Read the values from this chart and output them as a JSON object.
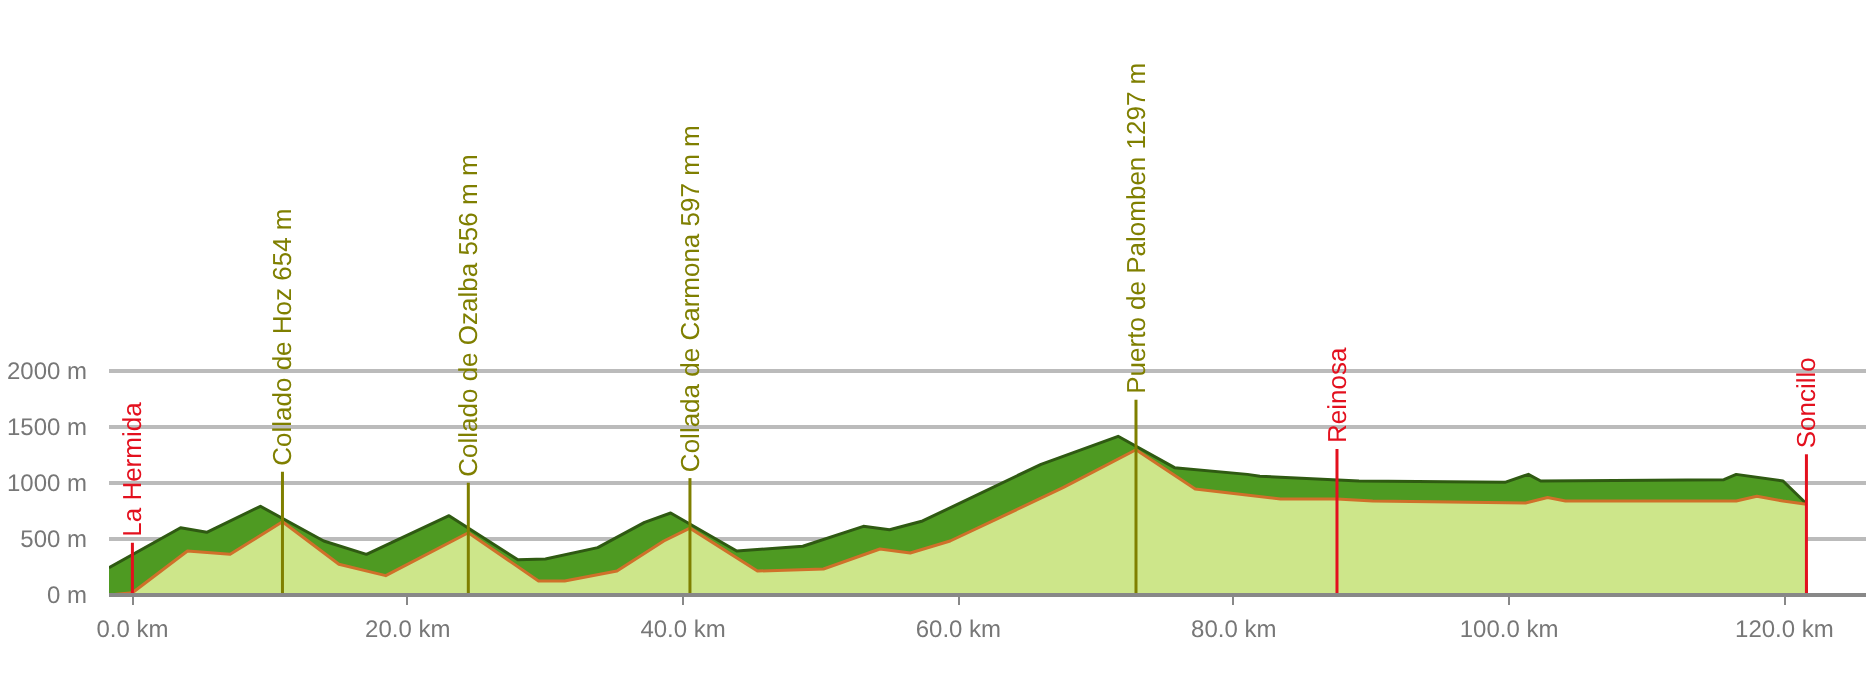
{
  "chart_data": {
    "type": "area",
    "series": [
      {
        "color": "#4e9a22",
        "x": [
          -1.7,
          3.5,
          5.4,
          9.3,
          13.9,
          17.0,
          23.0,
          28.0,
          30.0,
          33.8,
          37.2,
          39.1,
          43.9,
          48.7,
          53.1,
          55.0,
          57.4,
          66.0,
          71.6,
          75.7,
          81.0,
          81.9,
          89.1,
          99.7,
          101.4,
          102.3,
          115.6,
          116.5,
          119.9,
          121.4,
          121.6
        ],
        "values": [
          244,
          601,
          560,
          792,
          482,
          363,
          708,
          315,
          321,
          423,
          649,
          732,
          393,
          435,
          613,
          583,
          661,
          1167,
          1417,
          1137,
          1077,
          1060,
          1018,
          1006,
          1077,
          1018,
          1030,
          1077,
          1018,
          839,
          0
        ]
      },
      {
        "color": "#cde68a",
        "x": [
          -1.7,
          0,
          4.0,
          7.1,
          10.9,
          15.0,
          18.4,
          24.4,
          29.5,
          31.4,
          35.2,
          38.6,
          40.5,
          45.4,
          50.2,
          54.3,
          56.5,
          59.4,
          67.6,
          72.9,
          77.2,
          83.4,
          87.5,
          90.1,
          101.2,
          102.8,
          104.1,
          116.5,
          118.0,
          119.9,
          121.6
        ],
        "values": [
          0,
          20,
          393,
          363,
          654,
          274,
          173,
          556,
          125,
          125,
          214,
          482,
          597,
          214,
          232,
          411,
          375,
          482,
          958,
          1297,
          946,
          857,
          857,
          839,
          821,
          870,
          839,
          839,
          881,
          839,
          810
        ]
      }
    ],
    "xlim": [
      -1.7,
      126
    ],
    "xticks": [
      {
        "value": 0,
        "label": "0.0 km"
      },
      {
        "value": 20,
        "label": "20.0 km"
      },
      {
        "value": 40,
        "label": "40.0 km"
      },
      {
        "value": 60,
        "label": "60.0 km"
      },
      {
        "value": 80,
        "label": "80.0 km"
      },
      {
        "value": 100,
        "label": "100.0 km"
      },
      {
        "value": 120,
        "label": "120.0 km"
      }
    ],
    "ylim": [
      0,
      2000
    ],
    "yticks": [
      {
        "value": 0,
        "label": "0 m"
      },
      {
        "value": 500,
        "label": "500 m"
      },
      {
        "value": 1000,
        "label": "1000 m"
      },
      {
        "value": 1500,
        "label": "1500 m"
      },
      {
        "value": 2000,
        "label": "2000 m"
      }
    ],
    "grid": "y",
    "ref_lines": [
      {
        "axis": "x",
        "value": 0,
        "label": "La Hermida",
        "color": "#e3101e"
      },
      {
        "axis": "x",
        "value": 10.9,
        "label": "Collado de Hoz 654 m",
        "color": "#7f7f00"
      },
      {
        "axis": "x",
        "value": 24.4,
        "label": "Collado de Ozalba 556 m m",
        "color": "#7f7f00"
      },
      {
        "axis": "x",
        "value": 40.5,
        "label": "Collada de Carmona 597 m m",
        "color": "#7f7f00"
      },
      {
        "axis": "x",
        "value": 72.9,
        "label": "Puerto de Palomben 1297 m",
        "color": "#7f7f00"
      },
      {
        "axis": "x",
        "value": 87.5,
        "label": "Reinosa",
        "color": "#e3101e"
      },
      {
        "axis": "x",
        "value": 121.6,
        "label": "Soncillo",
        "color": "#e3101e"
      }
    ]
  }
}
